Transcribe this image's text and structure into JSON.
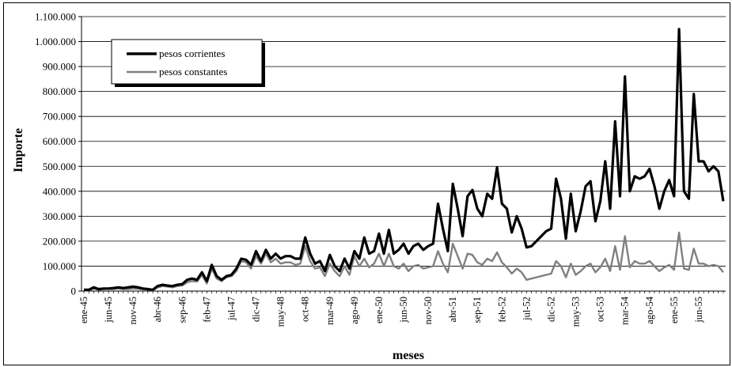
{
  "chart_data": {
    "type": "line",
    "xlabel": "meses",
    "ylabel": "Importe",
    "ylim": [
      0,
      1100000
    ],
    "yticks": [
      0,
      100000,
      200000,
      300000,
      400000,
      500000,
      600000,
      700000,
      800000,
      900000,
      1000000,
      1100000
    ],
    "ytick_labels": [
      "0",
      "100.000",
      "200.000",
      "300.000",
      "400.000",
      "500.000",
      "600.000",
      "700.000",
      "800.000",
      "900.000",
      "1.000.000",
      "1.100.000"
    ],
    "xtick_labels": [
      "ene-45",
      "jun-45",
      "nov-45",
      "abr-46",
      "sep-46",
      "feb-47",
      "jul-47",
      "dic-47",
      "may-48",
      "oct-48",
      "mar-49",
      "ago-49",
      "ene-50",
      "jun-50",
      "nov-50",
      "abr-51",
      "sep-51",
      "feb-52",
      "jul-52",
      "dic-52",
      "may-53",
      "oct-53",
      "mar-54",
      "ago-54",
      "ene-55",
      "jun-55"
    ],
    "grid": "horizontal",
    "legend_position": "top-left",
    "colors": {
      "pesos_corrientes": "#000000",
      "pesos_constantes": "#808080"
    },
    "series": [
      {
        "name": "pesos corrientes",
        "values": [
          5000,
          5000,
          15000,
          8000,
          10000,
          10000,
          12000,
          15000,
          12000,
          15000,
          18000,
          15000,
          10000,
          8000,
          5000,
          20000,
          25000,
          22000,
          20000,
          25000,
          28000,
          45000,
          50000,
          45000,
          75000,
          40000,
          105000,
          60000,
          45000,
          60000,
          65000,
          90000,
          130000,
          125000,
          105000,
          160000,
          120000,
          165000,
          130000,
          150000,
          130000,
          140000,
          140000,
          130000,
          130000,
          215000,
          150000,
          110000,
          120000,
          80000,
          145000,
          100000,
          80000,
          130000,
          90000,
          160000,
          130000,
          215000,
          150000,
          160000,
          230000,
          150000,
          245000,
          150000,
          165000,
          190000,
          150000,
          180000,
          190000,
          165000,
          180000,
          190000,
          350000,
          250000,
          160000,
          430000,
          330000,
          220000,
          380000,
          405000,
          330000,
          300000,
          390000,
          370000,
          495000,
          350000,
          330000,
          235000,
          300000,
          250000,
          175000,
          180000,
          200000,
          220000,
          240000,
          250000,
          450000,
          370000,
          210000,
          390000,
          240000,
          320000,
          420000,
          440000,
          280000,
          360000,
          520000,
          330000,
          680000,
          380000,
          860000,
          400000,
          460000,
          450000,
          460000,
          490000,
          420000,
          330000,
          400000,
          445000,
          380000,
          1050000,
          400000,
          370000,
          790000,
          520000,
          520000,
          480000,
          500000,
          480000,
          360000
        ],
        "values_start": "ene-45"
      },
      {
        "name": "pesos constantes",
        "values": [
          3000,
          3000,
          10000,
          5000,
          8000,
          8000,
          8000,
          10000,
          8000,
          8000,
          10000,
          9000,
          7000,
          6000,
          3000,
          15000,
          20000,
          18000,
          15000,
          20000,
          22000,
          35000,
          40000,
          38000,
          65000,
          30000,
          90000,
          50000,
          40000,
          55000,
          60000,
          80000,
          120000,
          115000,
          90000,
          140000,
          110000,
          150000,
          115000,
          130000,
          110000,
          115000,
          115000,
          105000,
          110000,
          180000,
          120000,
          90000,
          95000,
          60000,
          110000,
          80000,
          60000,
          100000,
          65000,
          140000,
          100000,
          130000,
          95000,
          110000,
          150000,
          100000,
          150000,
          100000,
          90000,
          110000,
          80000,
          100000,
          105000,
          90000,
          95000,
          100000,
          160000,
          110000,
          75000,
          190000,
          140000,
          90000,
          150000,
          145000,
          115000,
          105000,
          130000,
          120000,
          155000,
          115000,
          95000,
          70000,
          90000,
          75000,
          45000,
          50000,
          55000,
          60000,
          65000,
          70000,
          120000,
          100000,
          55000,
          110000,
          65000,
          80000,
          100000,
          110000,
          75000,
          95000,
          130000,
          80000,
          180000,
          85000,
          220000,
          95000,
          120000,
          110000,
          110000,
          120000,
          100000,
          80000,
          95000,
          105000,
          85000,
          235000,
          90000,
          85000,
          170000,
          110000,
          110000,
          100000,
          105000,
          100000,
          75000
        ],
        "values_start": "ene-45"
      }
    ]
  }
}
